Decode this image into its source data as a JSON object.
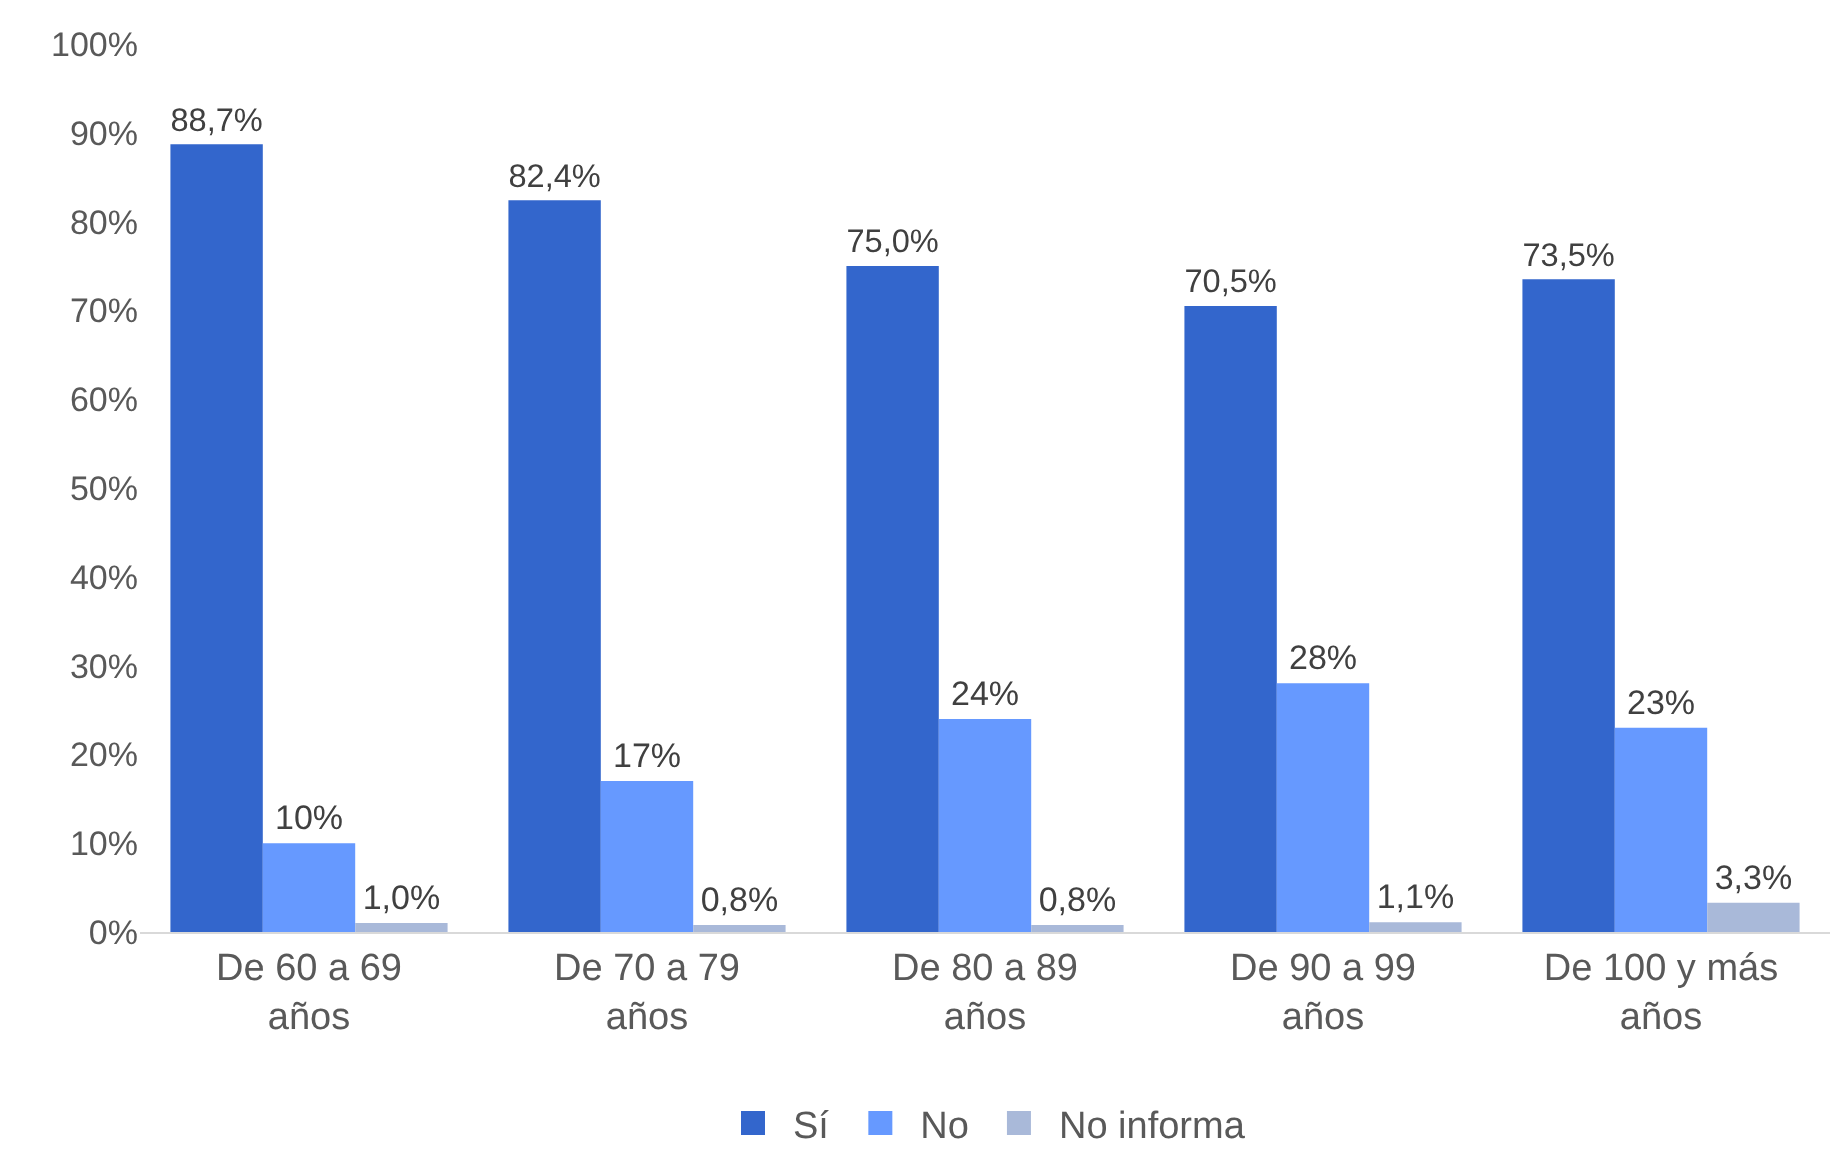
{
  "chart_data": {
    "type": "bar",
    "categories": [
      "De 60 a 69 años",
      "De 70 a 79 años",
      "De 80 a 89 años",
      "De 90 a 99 años",
      "De 100 y más años"
    ],
    "series": [
      {
        "name": "Sí",
        "color": "#3366cc",
        "values": [
          88.7,
          82.4,
          75.0,
          70.5,
          73.5
        ],
        "value_labels": [
          "88,7%",
          "82,4%",
          "75,0%",
          "70,5%",
          "73,5%"
        ]
      },
      {
        "name": "No",
        "color": "#6699ff",
        "values": [
          10,
          17,
          24,
          28,
          23
        ],
        "value_labels": [
          "10%",
          "17%",
          "24%",
          "28%",
          "23%"
        ]
      },
      {
        "name": "No informa",
        "color": "#a9b9d9",
        "values": [
          1.0,
          0.8,
          0.8,
          1.1,
          3.3
        ],
        "value_labels": [
          "1,0%",
          "0,8%",
          "0,8%",
          "1,1%",
          "3,3%"
        ]
      }
    ],
    "ylim": [
      0,
      100
    ],
    "yticks": [
      {
        "value": 0,
        "label": "0%"
      },
      {
        "value": 10,
        "label": "10%"
      },
      {
        "value": 20,
        "label": "20%"
      },
      {
        "value": 30,
        "label": "30%"
      },
      {
        "value": 40,
        "label": "40%"
      },
      {
        "value": 50,
        "label": "50%"
      },
      {
        "value": 60,
        "label": "60%"
      },
      {
        "value": 70,
        "label": "70%"
      },
      {
        "value": 80,
        "label": "80%"
      },
      {
        "value": 90,
        "label": "90%"
      },
      {
        "value": 100,
        "label": "100%"
      }
    ],
    "legend": "bottom",
    "grid": false
  }
}
